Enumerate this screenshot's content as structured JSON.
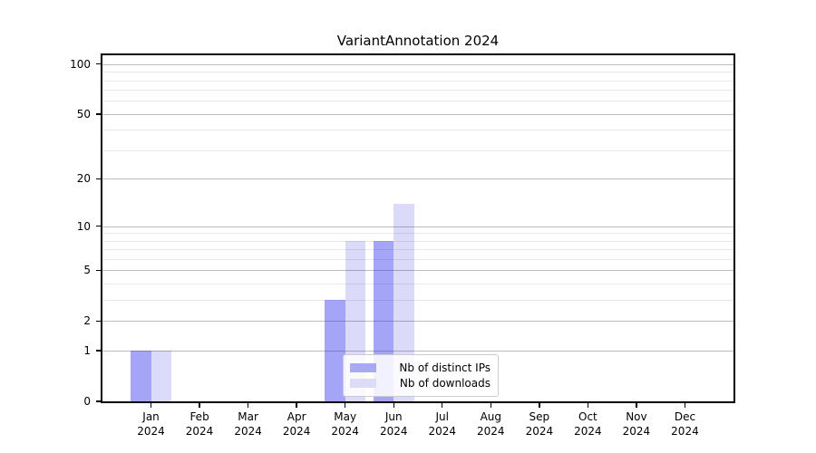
{
  "chart_data": {
    "type": "bar",
    "title": "VariantAnnotation 2024",
    "x_categories": [
      "Jan",
      "Feb",
      "Mar",
      "Apr",
      "May",
      "Jun",
      "Jul",
      "Aug",
      "Sep",
      "Oct",
      "Nov",
      "Dec"
    ],
    "x_year_label": "2024",
    "series": [
      {
        "name": "Nb of distinct IPs",
        "values": [
          1,
          0,
          0,
          0,
          3,
          8,
          0,
          0,
          0,
          0,
          0,
          0
        ],
        "bar_color": "rgba(40,40,235,0.42)",
        "legend_color": "#a9a9f3"
      },
      {
        "name": "Nb of downloads",
        "values": [
          1,
          0,
          0,
          0,
          8,
          14,
          0,
          0,
          0,
          0,
          0,
          0
        ],
        "bar_color": "rgba(30,30,215,0.16)",
        "legend_color": "#dcdcf7"
      }
    ],
    "y_scale": "log10(1+y)",
    "ylim": [
      0,
      113
    ],
    "y_major_ticks": [
      0,
      1,
      2,
      5,
      10,
      20,
      50,
      100
    ],
    "y_minor_ticks": [
      3,
      4,
      6,
      7,
      8,
      9,
      30,
      40,
      60,
      70,
      80,
      90
    ],
    "grid": true,
    "legend_position": "lower center",
    "colors": {
      "grid_major": "#bcbcbc",
      "grid_minor": "#e8e8e8",
      "axis": "#000000",
      "background": "#ffffff"
    }
  }
}
